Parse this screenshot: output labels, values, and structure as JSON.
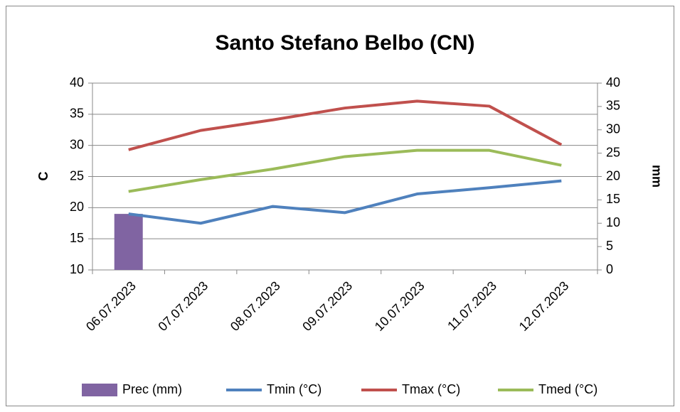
{
  "chart_data": {
    "type": "line",
    "title": "Santo Stefano Belbo (CN)",
    "y_label": "C",
    "y2_label": "mm",
    "categories": [
      "06.07.2023",
      "07.07.2023",
      "08.07.2023",
      "09.07.2023",
      "10.07.2023",
      "11.07.2023",
      "12.07.2023"
    ],
    "series": [
      {
        "name": "Prec (mm)",
        "type": "bar",
        "axis": "y2",
        "color": "#8064a2",
        "values": [
          12,
          0,
          0,
          0,
          0,
          0,
          0
        ]
      },
      {
        "name": "Tmin (°C)",
        "type": "line",
        "color": "#4f81bd",
        "values": [
          19.0,
          17.5,
          20.2,
          19.2,
          22.2,
          23.2,
          24.3
        ]
      },
      {
        "name": "Tmax (°C)",
        "type": "line",
        "color": "#c0504d",
        "values": [
          29.3,
          32.4,
          34.1,
          36.0,
          37.1,
          36.3,
          30.1
        ]
      },
      {
        "name": "Tmed (°C)",
        "type": "line",
        "color": "#9bbb59",
        "values": [
          22.6,
          24.5,
          26.2,
          28.2,
          29.2,
          29.2,
          26.8
        ]
      }
    ],
    "ylim": [
      10,
      40
    ],
    "yticks": [
      10,
      15,
      20,
      25,
      30,
      35,
      40
    ],
    "y2lim": [
      0,
      40
    ],
    "y2ticks": [
      0,
      5,
      10,
      15,
      20,
      25,
      30,
      35,
      40
    ],
    "grid": true,
    "legend": "bottom"
  }
}
